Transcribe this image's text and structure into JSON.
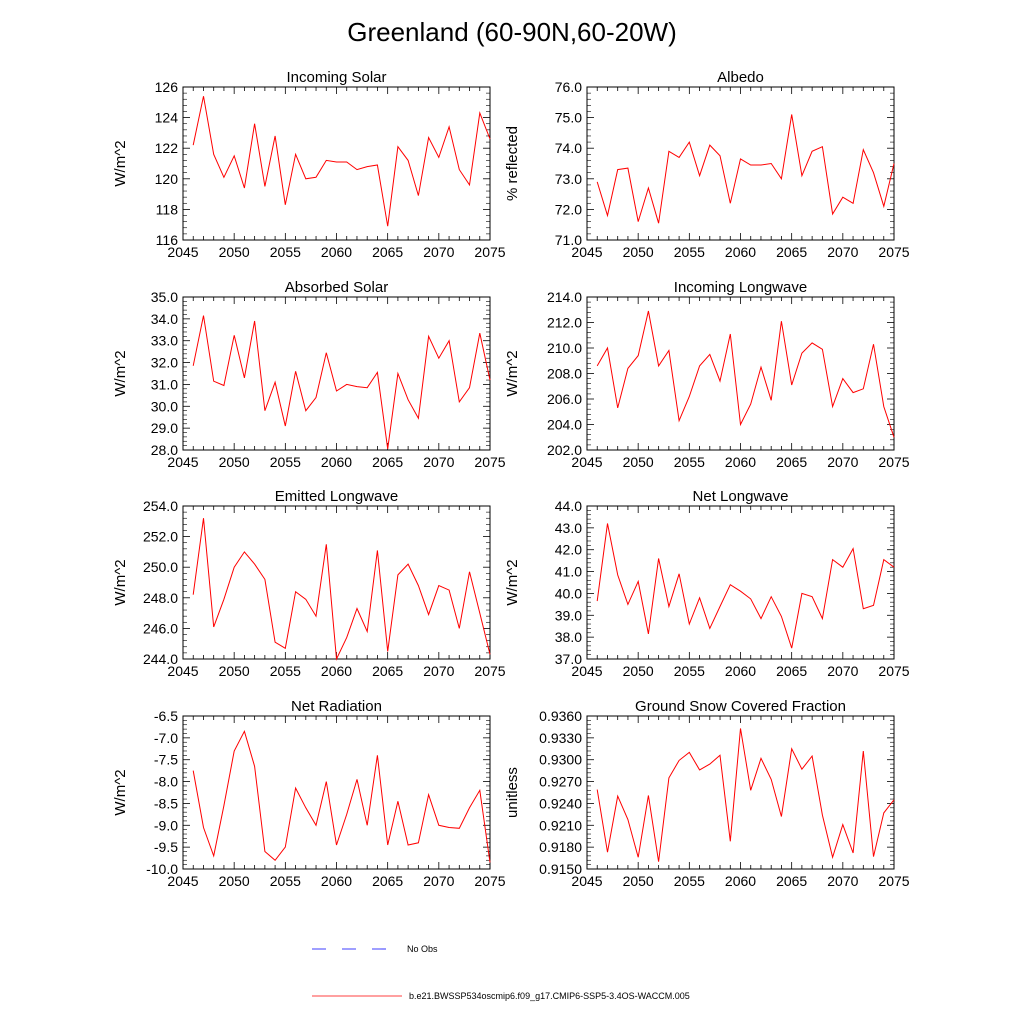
{
  "title": "Greenland (60-90N,60-20W)",
  "colors": {
    "model": "#ff0000",
    "obs": "#0000ff",
    "frame": "#000000"
  },
  "legend": {
    "obs_label": "No Obs",
    "model_label": "b.e21.BWSSP534oscmip6.f09_g17.CMIP6-SSP5-3.4OS-WACCM.005"
  },
  "chart_data": [
    {
      "type": "line",
      "title": "Incoming Solar",
      "ylabel": "W/m^2",
      "xlim": [
        2045,
        2075
      ],
      "ylim": [
        116,
        126
      ],
      "xticks": [
        2045,
        2050,
        2055,
        2060,
        2065,
        2070,
        2075
      ],
      "yticks": [
        116,
        118,
        120,
        122,
        124,
        126
      ],
      "ytick_decimals": 0,
      "x": [
        2046,
        2047,
        2048,
        2049,
        2050,
        2051,
        2052,
        2053,
        2054,
        2055,
        2056,
        2057,
        2058,
        2059,
        2060,
        2061,
        2062,
        2063,
        2064,
        2065,
        2066,
        2067,
        2068,
        2069,
        2070,
        2071,
        2072,
        2073,
        2074,
        2075
      ],
      "series": [
        {
          "values": [
            122.2,
            125.4,
            121.6,
            120.1,
            121.5,
            119.4,
            123.6,
            119.5,
            122.8,
            118.3,
            121.6,
            120.0,
            120.1,
            121.2,
            121.1,
            121.1,
            120.6,
            120.8,
            120.9,
            116.9,
            122.1,
            121.2,
            118.9,
            122.7,
            121.4,
            123.4,
            120.6,
            119.6,
            124.3,
            122.6
          ]
        }
      ]
    },
    {
      "type": "line",
      "title": "Albedo",
      "ylabel": "% reflected",
      "xlim": [
        2045,
        2075
      ],
      "ylim": [
        71.0,
        76.0
      ],
      "xticks": [
        2045,
        2050,
        2055,
        2060,
        2065,
        2070,
        2075
      ],
      "yticks": [
        71.0,
        72.0,
        73.0,
        74.0,
        75.0,
        76.0
      ],
      "ytick_decimals": 1,
      "x": [
        2046,
        2047,
        2048,
        2049,
        2050,
        2051,
        2052,
        2053,
        2054,
        2055,
        2056,
        2057,
        2058,
        2059,
        2060,
        2061,
        2062,
        2063,
        2064,
        2065,
        2066,
        2067,
        2068,
        2069,
        2070,
        2071,
        2072,
        2073,
        2074,
        2075
      ],
      "series": [
        {
          "values": [
            72.9,
            71.8,
            73.3,
            73.35,
            71.6,
            72.7,
            71.55,
            73.9,
            73.7,
            74.2,
            73.1,
            74.1,
            73.75,
            72.2,
            73.65,
            73.45,
            73.45,
            73.5,
            73.0,
            75.1,
            73.1,
            73.9,
            74.05,
            71.85,
            72.4,
            72.2,
            73.95,
            73.2,
            72.1,
            73.5
          ]
        }
      ]
    },
    {
      "type": "line",
      "title": "Absorbed Solar",
      "ylabel": "W/m^2",
      "xlim": [
        2045,
        2075
      ],
      "ylim": [
        28.0,
        35.0
      ],
      "xticks": [
        2045,
        2050,
        2055,
        2060,
        2065,
        2070,
        2075
      ],
      "yticks": [
        28.0,
        29.0,
        30.0,
        31.0,
        32.0,
        33.0,
        34.0,
        35.0
      ],
      "ytick_decimals": 1,
      "x": [
        2046,
        2047,
        2048,
        2049,
        2050,
        2051,
        2052,
        2053,
        2054,
        2055,
        2056,
        2057,
        2058,
        2059,
        2060,
        2061,
        2062,
        2063,
        2064,
        2065,
        2066,
        2067,
        2068,
        2069,
        2070,
        2071,
        2072,
        2073,
        2074,
        2075
      ],
      "series": [
        {
          "values": [
            31.85,
            34.15,
            31.15,
            30.95,
            33.25,
            31.3,
            33.9,
            29.8,
            31.1,
            29.1,
            31.6,
            29.8,
            30.4,
            32.45,
            30.7,
            31.0,
            30.9,
            30.85,
            31.55,
            28.05,
            31.5,
            30.3,
            29.45,
            33.2,
            32.2,
            33.0,
            30.2,
            30.85,
            33.35,
            31.2
          ]
        }
      ]
    },
    {
      "type": "line",
      "title": "Incoming Longwave",
      "ylabel": "W/m^2",
      "xlim": [
        2045,
        2075
      ],
      "ylim": [
        202.0,
        214.0
      ],
      "xticks": [
        2045,
        2050,
        2055,
        2060,
        2065,
        2070,
        2075
      ],
      "yticks": [
        202.0,
        204.0,
        206.0,
        208.0,
        210.0,
        212.0,
        214.0
      ],
      "ytick_decimals": 1,
      "x": [
        2046,
        2047,
        2048,
        2049,
        2050,
        2051,
        2052,
        2053,
        2054,
        2055,
        2056,
        2057,
        2058,
        2059,
        2060,
        2061,
        2062,
        2063,
        2064,
        2065,
        2066,
        2067,
        2068,
        2069,
        2070,
        2071,
        2072,
        2073,
        2074,
        2075
      ],
      "series": [
        {
          "values": [
            208.6,
            210.0,
            205.3,
            208.4,
            209.4,
            212.9,
            208.6,
            209.8,
            204.3,
            206.2,
            208.6,
            209.5,
            207.4,
            211.1,
            204.0,
            205.6,
            208.5,
            205.9,
            212.1,
            207.1,
            209.6,
            210.4,
            209.9,
            205.4,
            207.6,
            206.5,
            206.8,
            210.3,
            205.4,
            203.0
          ]
        }
      ]
    },
    {
      "type": "line",
      "title": "Emitted Longwave",
      "ylabel": "W/m^2",
      "xlim": [
        2045,
        2075
      ],
      "ylim": [
        244.0,
        254.0
      ],
      "xticks": [
        2045,
        2050,
        2055,
        2060,
        2065,
        2070,
        2075
      ],
      "yticks": [
        244.0,
        246.0,
        248.0,
        250.0,
        252.0,
        254.0
      ],
      "ytick_decimals": 1,
      "x": [
        2046,
        2047,
        2048,
        2049,
        2050,
        2051,
        2052,
        2053,
        2054,
        2055,
        2056,
        2057,
        2058,
        2059,
        2060,
        2061,
        2062,
        2063,
        2064,
        2065,
        2066,
        2067,
        2068,
        2069,
        2070,
        2071,
        2072,
        2073,
        2074,
        2075
      ],
      "series": [
        {
          "values": [
            248.2,
            253.2,
            246.1,
            247.9,
            250.0,
            251.0,
            250.2,
            249.2,
            245.1,
            244.7,
            248.4,
            247.9,
            246.8,
            251.5,
            244.0,
            245.4,
            247.3,
            245.8,
            251.1,
            244.5,
            249.5,
            250.2,
            248.8,
            246.9,
            248.8,
            248.5,
            246.0,
            249.7,
            247.0,
            244.3
          ]
        }
      ]
    },
    {
      "type": "line",
      "title": "Net Longwave",
      "ylabel": "W/m^2",
      "xlim": [
        2045,
        2075
      ],
      "ylim": [
        37.0,
        44.0
      ],
      "xticks": [
        2045,
        2050,
        2055,
        2060,
        2065,
        2070,
        2075
      ],
      "yticks": [
        37.0,
        38.0,
        39.0,
        40.0,
        41.0,
        42.0,
        43.0,
        44.0
      ],
      "ytick_decimals": 1,
      "x": [
        2046,
        2047,
        2048,
        2049,
        2050,
        2051,
        2052,
        2053,
        2054,
        2055,
        2056,
        2057,
        2058,
        2059,
        2060,
        2061,
        2062,
        2063,
        2064,
        2065,
        2066,
        2067,
        2068,
        2069,
        2070,
        2071,
        2072,
        2073,
        2074,
        2075
      ],
      "series": [
        {
          "values": [
            39.65,
            43.2,
            40.85,
            39.5,
            40.55,
            38.15,
            41.6,
            39.4,
            40.9,
            38.6,
            39.8,
            38.4,
            39.4,
            40.4,
            40.1,
            39.75,
            38.85,
            39.85,
            38.95,
            37.5,
            40.0,
            39.85,
            38.85,
            41.55,
            41.2,
            42.05,
            39.3,
            39.45,
            41.55,
            41.2
          ]
        }
      ]
    },
    {
      "type": "line",
      "title": "Net Radiation",
      "ylabel": "W/m^2",
      "xlim": [
        2045,
        2075
      ],
      "ylim": [
        -10.0,
        -6.5
      ],
      "xticks": [
        2045,
        2050,
        2055,
        2060,
        2065,
        2070,
        2075
      ],
      "yticks": [
        -10.0,
        -9.5,
        -9.0,
        -8.5,
        -8.0,
        -7.5,
        -7.0,
        -6.5
      ],
      "ytick_decimals": 1,
      "x": [
        2046,
        2047,
        2048,
        2049,
        2050,
        2051,
        2052,
        2053,
        2054,
        2055,
        2056,
        2057,
        2058,
        2059,
        2060,
        2061,
        2062,
        2063,
        2064,
        2065,
        2066,
        2067,
        2068,
        2069,
        2070,
        2071,
        2072,
        2073,
        2074,
        2075
      ],
      "series": [
        {
          "values": [
            -7.75,
            -9.05,
            -9.7,
            -8.55,
            -7.3,
            -6.85,
            -7.65,
            -9.6,
            -9.8,
            -9.5,
            -8.15,
            -8.6,
            -9.0,
            -8.0,
            -9.45,
            -8.75,
            -7.95,
            -9.0,
            -7.4,
            -9.45,
            -8.45,
            -9.45,
            -9.4,
            -8.3,
            -9.0,
            -9.05,
            -9.07,
            -8.6,
            -8.2,
            -9.85
          ]
        }
      ]
    },
    {
      "type": "line",
      "title": "Ground Snow Covered Fraction",
      "ylabel": "unitless",
      "xlim": [
        2045,
        2075
      ],
      "ylim": [
        0.915,
        0.936
      ],
      "xticks": [
        2045,
        2050,
        2055,
        2060,
        2065,
        2070,
        2075
      ],
      "yticks": [
        0.915,
        0.918,
        0.921,
        0.924,
        0.927,
        0.93,
        0.933,
        0.936
      ],
      "ytick_decimals": 4,
      "x": [
        2046,
        2047,
        2048,
        2049,
        2050,
        2051,
        2052,
        2053,
        2054,
        2055,
        2056,
        2057,
        2058,
        2059,
        2060,
        2061,
        2062,
        2063,
        2064,
        2065,
        2066,
        2067,
        2068,
        2069,
        2070,
        2071,
        2072,
        2073,
        2074,
        2075
      ],
      "series": [
        {
          "values": [
            0.9259,
            0.9173,
            0.925,
            0.9218,
            0.9166,
            0.9251,
            0.916,
            0.9275,
            0.9299,
            0.931,
            0.9286,
            0.9294,
            0.9306,
            0.9188,
            0.9343,
            0.9258,
            0.9302,
            0.9273,
            0.9222,
            0.9315,
            0.9287,
            0.9305,
            0.9224,
            0.9166,
            0.9211,
            0.9172,
            0.9312,
            0.9167,
            0.9227,
            0.9245
          ]
        }
      ]
    }
  ]
}
